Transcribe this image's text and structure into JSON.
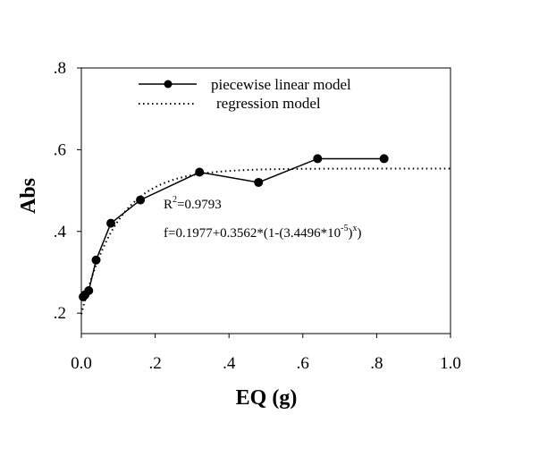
{
  "chart_data": {
    "type": "line",
    "title": "",
    "xlabel": "EQ (g)",
    "ylabel": "Abs",
    "xlim": [
      0.0,
      1.0
    ],
    "ylim": [
      0.15,
      0.8
    ],
    "x_ticks": [
      {
        "value": 0.0,
        "label": "0.0"
      },
      {
        "value": 0.2,
        "label": ".2"
      },
      {
        "value": 0.4,
        "label": ".4"
      },
      {
        "value": 0.6,
        "label": ".6"
      },
      {
        "value": 0.8,
        "label": ".8"
      },
      {
        "value": 1.0,
        "label": "1.0"
      }
    ],
    "y_ticks": [
      {
        "value": 0.2,
        "label": ".2"
      },
      {
        "value": 0.4,
        "label": ".4"
      },
      {
        "value": 0.6,
        "label": ".6"
      },
      {
        "value": 0.8,
        "label": ".8"
      }
    ],
    "grid": false,
    "legend_position": "top",
    "series": [
      {
        "name": "piecewise linear model",
        "style": "solid-line-with-circle-markers",
        "color": "#000000",
        "x": [
          0.005,
          0.01,
          0.02,
          0.04,
          0.08,
          0.16,
          0.32,
          0.48,
          0.64,
          0.82
        ],
        "y": [
          0.24,
          0.245,
          0.255,
          0.33,
          0.42,
          0.477,
          0.545,
          0.52,
          0.578,
          0.578
        ]
      },
      {
        "name": "regression model",
        "style": "dotted-line",
        "color": "#000000",
        "equation": {
          "a": 0.1977,
          "b": 0.3562,
          "c": 3.4496e-05
        },
        "x_range": [
          0.0,
          1.0
        ]
      }
    ],
    "annotations": {
      "r2_base": "R",
      "r2_sup": "2",
      "r2_value": "=0.9793",
      "eq_pre": "f=0.1977+0.3562*(1-(3.4496*10",
      "eq_sup1": "-5",
      "eq_mid": ")",
      "eq_sup2": "x",
      "eq_post": ")"
    }
  }
}
